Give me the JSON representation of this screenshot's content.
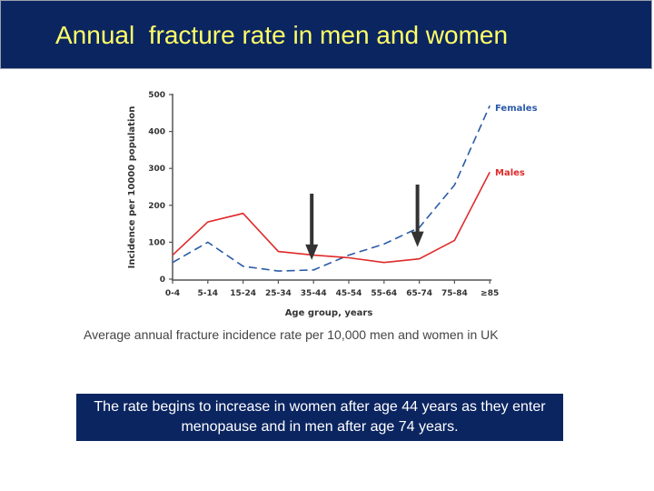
{
  "slide": {
    "title": "Annual  fracture rate in men and women",
    "caption": "Average annual fracture incidence rate per 10,000 men and women in UK",
    "note": "The rate begins to increase in women after age 44 years as they enter menopause and in men after age 74 years."
  },
  "colors": {
    "title_bar": "#0b2561",
    "title_text": "#ffff66",
    "females": "#2a5aa8",
    "males": "#e02a2a",
    "arrow": "#333333"
  },
  "chart_data": {
    "type": "line",
    "xlabel": "Age group, years",
    "ylabel": "Incidence per 10000 population",
    "ylim": [
      0,
      500
    ],
    "yticks": [
      "0",
      "100",
      "200",
      "300",
      "400",
      "500"
    ],
    "categories": [
      "0-4",
      "5-14",
      "15-24",
      "25-34",
      "35-44",
      "45-54",
      "55-64",
      "65-74",
      "75-84",
      "≥85"
    ],
    "series": [
      {
        "name": "Females",
        "style": "dashed",
        "values": [
          45,
          100,
          35,
          22,
          25,
          65,
          95,
          140,
          255,
          470
        ]
      },
      {
        "name": "Males",
        "style": "solid",
        "values": [
          65,
          155,
          178,
          75,
          65,
          58,
          45,
          55,
          105,
          290
        ]
      }
    ],
    "annotations": [
      {
        "type": "down-arrow",
        "category": "35-44",
        "points_to_value": 25
      },
      {
        "type": "down-arrow",
        "category": "65-74",
        "points_to_value": 60
      }
    ]
  }
}
